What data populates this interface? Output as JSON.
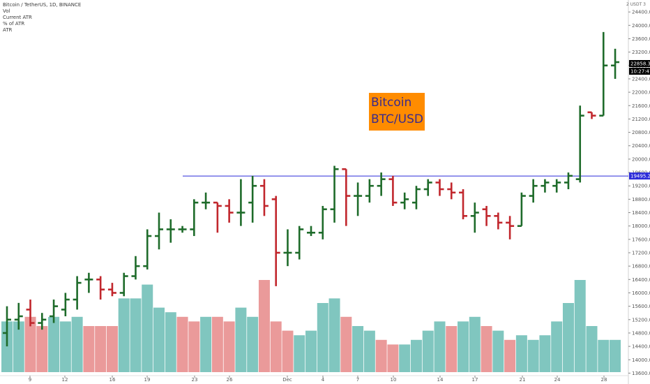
{
  "legend": {
    "title": "Bitcoin / TetherUS, 1D, BINANCE",
    "lines": [
      "Vol",
      "Current ATR",
      "% of ATR",
      "ATR"
    ]
  },
  "currency_label": "USDT",
  "currency_sub": "3",
  "corner_label": "2",
  "annotation": {
    "line1": "Bitcoin",
    "line2": "BTC/USD",
    "bg": "#ff8c00",
    "fg": "#3a2a8c"
  },
  "price_tags": {
    "last_price": "22858.32",
    "countdown": "10:27:47",
    "level": "19495.23"
  },
  "colors": {
    "up": "#1e6b2a",
    "down": "#c1272d",
    "vol_up": "#80c6bf",
    "vol_down": "#ea9a9a",
    "level_line": "#2b2bd9"
  },
  "chart_data": {
    "type": "bar",
    "subtype": "ohlc",
    "symbol": "Bitcoin / TetherUS",
    "timeframe": "1D",
    "exchange": "BINANCE",
    "y_ticks": [
      13600,
      14000,
      14400,
      14800,
      15200,
      15600,
      16000,
      16400,
      16800,
      17200,
      17600,
      18000,
      18400,
      18800,
      19200,
      19600,
      20000,
      20400,
      20800,
      21200,
      21600,
      22000,
      22400,
      22800,
      23200,
      23600,
      24000,
      24400
    ],
    "ylim": [
      13400,
      24800
    ],
    "x_ticks": [
      "9",
      "12",
      "16",
      "19",
      "23",
      "26",
      "Dec",
      "4",
      "7",
      "10",
      "14",
      "17",
      "21",
      "24",
      "28"
    ],
    "horizontal_line": 19495.23,
    "ohlc": [
      {
        "o": 14800,
        "h": 15600,
        "l": 14400,
        "c": 15200
      },
      {
        "o": 15200,
        "h": 15700,
        "l": 14900,
        "c": 15300
      },
      {
        "o": 15500,
        "h": 15800,
        "l": 15000,
        "c": 15100
      },
      {
        "o": 15100,
        "h": 15400,
        "l": 14900,
        "c": 15200
      },
      {
        "o": 15300,
        "h": 15800,
        "l": 15100,
        "c": 15600
      },
      {
        "o": 15500,
        "h": 16000,
        "l": 15300,
        "c": 15800
      },
      {
        "o": 15800,
        "h": 16500,
        "l": 15500,
        "c": 16300
      },
      {
        "o": 16400,
        "h": 16600,
        "l": 16000,
        "c": 16400
      },
      {
        "o": 16400,
        "h": 16500,
        "l": 15800,
        "c": 16100
      },
      {
        "o": 16100,
        "h": 16300,
        "l": 15900,
        "c": 16000
      },
      {
        "o": 16000,
        "h": 16600,
        "l": 15900,
        "c": 16500
      },
      {
        "o": 16500,
        "h": 17100,
        "l": 16400,
        "c": 16800
      },
      {
        "o": 16800,
        "h": 17900,
        "l": 16700,
        "c": 17700
      },
      {
        "o": 17700,
        "h": 18400,
        "l": 17300,
        "c": 17900
      },
      {
        "o": 17900,
        "h": 18200,
        "l": 17500,
        "c": 17900
      },
      {
        "o": 17900,
        "h": 18000,
        "l": 17800,
        "c": 17900
      },
      {
        "o": 17900,
        "h": 18800,
        "l": 17700,
        "c": 18700
      },
      {
        "o": 18700,
        "h": 19000,
        "l": 18500,
        "c": 18700
      },
      {
        "o": 18700,
        "h": 18700,
        "l": 17800,
        "c": 18600
      },
      {
        "o": 18600,
        "h": 18800,
        "l": 18100,
        "c": 18400
      },
      {
        "o": 18400,
        "h": 19400,
        "l": 18000,
        "c": 18400
      },
      {
        "o": 18700,
        "h": 19500,
        "l": 18100,
        "c": 19200
      },
      {
        "o": 19200,
        "h": 19400,
        "l": 18300,
        "c": 18600
      },
      {
        "o": 18800,
        "h": 18900,
        "l": 16200,
        "c": 17200
      },
      {
        "o": 17200,
        "h": 17900,
        "l": 16800,
        "c": 17200
      },
      {
        "o": 17200,
        "h": 18000,
        "l": 17000,
        "c": 17900
      },
      {
        "o": 17800,
        "h": 18000,
        "l": 17700,
        "c": 17800
      },
      {
        "o": 17800,
        "h": 18600,
        "l": 17600,
        "c": 18500
      },
      {
        "o": 18500,
        "h": 19800,
        "l": 18100,
        "c": 19700
      },
      {
        "o": 19700,
        "h": 19700,
        "l": 18000,
        "c": 18900
      },
      {
        "o": 18900,
        "h": 19300,
        "l": 18300,
        "c": 18900
      },
      {
        "o": 18900,
        "h": 19400,
        "l": 18700,
        "c": 19200
      },
      {
        "o": 19200,
        "h": 19600,
        "l": 18900,
        "c": 19400
      },
      {
        "o": 19400,
        "h": 19500,
        "l": 18600,
        "c": 18700
      },
      {
        "o": 18700,
        "h": 19000,
        "l": 18500,
        "c": 18800
      },
      {
        "o": 18700,
        "h": 19200,
        "l": 18500,
        "c": 19100
      },
      {
        "o": 19100,
        "h": 19400,
        "l": 18900,
        "c": 19300
      },
      {
        "o": 19300,
        "h": 19400,
        "l": 18900,
        "c": 19100
      },
      {
        "o": 19100,
        "h": 19300,
        "l": 18800,
        "c": 19000
      },
      {
        "o": 19000,
        "h": 19100,
        "l": 18200,
        "c": 18300
      },
      {
        "o": 18300,
        "h": 18700,
        "l": 17800,
        "c": 18400
      },
      {
        "o": 18500,
        "h": 18600,
        "l": 18000,
        "c": 18300
      },
      {
        "o": 18300,
        "h": 18400,
        "l": 17900,
        "c": 18100
      },
      {
        "o": 18100,
        "h": 18300,
        "l": 17600,
        "c": 18000
      },
      {
        "o": 18000,
        "h": 19000,
        "l": 18000,
        "c": 18900
      },
      {
        "o": 18900,
        "h": 19400,
        "l": 18700,
        "c": 19200
      },
      {
        "o": 19200,
        "h": 19400,
        "l": 19000,
        "c": 19300
      },
      {
        "o": 19200,
        "h": 19400,
        "l": 19000,
        "c": 19300
      },
      {
        "o": 19300,
        "h": 19600,
        "l": 19100,
        "c": 19500
      },
      {
        "o": 19400,
        "h": 21600,
        "l": 19300,
        "c": 21300
      },
      {
        "o": 21400,
        "h": 21400,
        "l": 21200,
        "c": 21300
      },
      {
        "o": 21300,
        "h": 23800,
        "l": 21300,
        "c": 22800
      },
      {
        "o": 22800,
        "h": 23300,
        "l": 22400,
        "c": 22900
      }
    ],
    "volume_up": [
      true,
      true,
      false,
      false,
      true,
      true,
      true,
      false,
      false,
      false,
      true,
      true,
      true,
      true,
      true,
      false,
      false,
      true,
      false,
      false,
      true,
      true,
      false,
      false,
      false,
      true,
      true,
      true,
      true,
      false,
      true,
      true,
      false,
      false,
      true,
      true,
      true,
      true,
      false,
      true,
      true,
      false,
      true,
      false,
      true,
      true,
      true,
      true,
      true,
      true,
      true,
      true,
      true
    ],
    "volume_rel": [
      0.55,
      0.55,
      0.6,
      0.5,
      0.6,
      0.55,
      0.6,
      0.5,
      0.5,
      0.5,
      0.8,
      0.8,
      0.95,
      0.7,
      0.65,
      0.6,
      0.55,
      0.6,
      0.6,
      0.55,
      0.7,
      0.6,
      1.0,
      0.55,
      0.45,
      0.4,
      0.45,
      0.75,
      0.8,
      0.6,
      0.5,
      0.45,
      0.35,
      0.3,
      0.3,
      0.35,
      0.45,
      0.55,
      0.5,
      0.55,
      0.6,
      0.5,
      0.45,
      0.35,
      0.4,
      0.35,
      0.4,
      0.55,
      0.75,
      1.0,
      0.5,
      0.35,
      0.35
    ]
  }
}
